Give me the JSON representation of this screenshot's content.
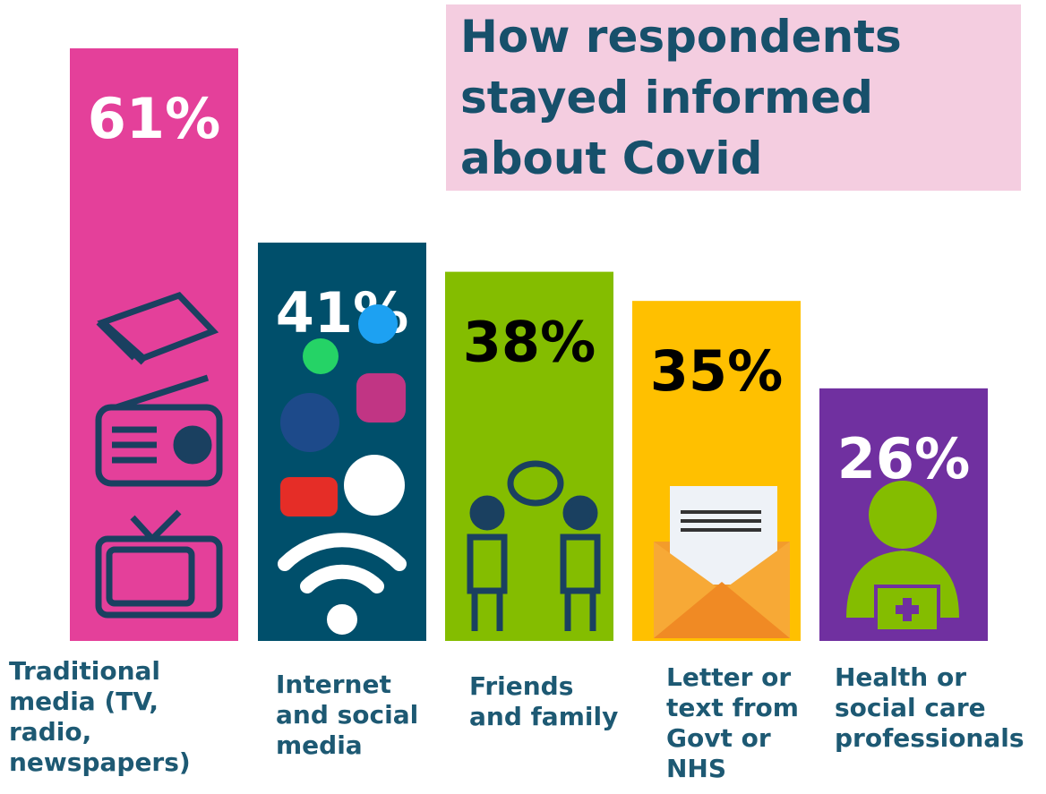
{
  "chart_data": {
    "type": "bar",
    "title": "How respondents stayed informed about Covid",
    "categories": [
      "Traditional media (TV, radio, newspapers)",
      "Internet and social media",
      "Friends and family",
      "Letter or text from Govt or NHS",
      "Health or social care professionals"
    ],
    "values": [
      61,
      41,
      38,
      35,
      26
    ],
    "value_labels": [
      "61%",
      "41%",
      "38%",
      "35%",
      "26%"
    ],
    "colors": [
      "#e4409a",
      "#004f6b",
      "#84bd00",
      "#ffc000",
      "#7030a0"
    ],
    "value_label_colors": [
      "#ffffff",
      "#ffffff",
      "#000000",
      "#000000",
      "#ffffff"
    ]
  }
}
